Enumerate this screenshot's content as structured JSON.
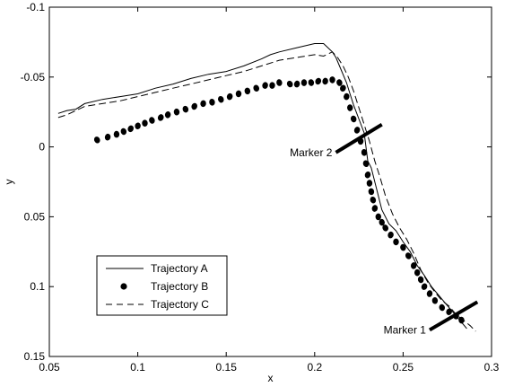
{
  "chart_data": {
    "type": "line",
    "xlabel": "x",
    "ylabel": "y",
    "xlim": [
      0.05,
      0.3
    ],
    "ylim": [
      -0.1,
      0.15
    ],
    "y_axis_reversed": true,
    "grid": false,
    "legend_placement": "bottom-left",
    "x_ticks": [
      0.05,
      0.1,
      0.15,
      0.2,
      0.25,
      0.3
    ],
    "x_tick_labels": [
      "0.05",
      "0.1",
      "0.15",
      "0.2",
      "0.25",
      "0.3"
    ],
    "y_ticks": [
      -0.1,
      -0.05,
      0,
      0.05,
      0.1,
      0.15
    ],
    "y_tick_labels": [
      "-0.1",
      "-0.05",
      "0",
      "0.05",
      "0.1",
      "0.15"
    ],
    "series": [
      {
        "name": "Trajectory A",
        "style": "solid",
        "color": "#000000",
        "x": [
          0.055,
          0.06,
          0.065,
          0.07,
          0.08,
          0.09,
          0.1,
          0.11,
          0.12,
          0.13,
          0.14,
          0.15,
          0.16,
          0.17,
          0.175,
          0.18,
          0.19,
          0.2,
          0.205,
          0.21,
          0.212,
          0.215,
          0.218,
          0.22,
          0.222,
          0.225,
          0.228,
          0.23,
          0.232,
          0.235,
          0.238,
          0.242,
          0.246,
          0.25,
          0.254,
          0.258,
          0.262,
          0.266,
          0.27,
          0.274,
          0.278,
          0.282,
          0.286
        ],
        "y": [
          -0.024,
          -0.026,
          -0.027,
          -0.031,
          -0.034,
          -0.036,
          -0.038,
          -0.042,
          -0.045,
          -0.049,
          -0.052,
          -0.054,
          -0.058,
          -0.063,
          -0.066,
          -0.068,
          -0.071,
          -0.074,
          -0.074,
          -0.068,
          -0.064,
          -0.055,
          -0.046,
          -0.038,
          -0.03,
          -0.02,
          -0.01,
          0.01,
          0.015,
          0.03,
          0.045,
          0.055,
          0.06,
          0.068,
          0.075,
          0.085,
          0.092,
          0.1,
          0.106,
          0.112,
          0.118,
          0.124,
          0.13
        ]
      },
      {
        "name": "Trajectory B",
        "style": "dots",
        "color": "#000000",
        "x": [
          0.077,
          0.083,
          0.088,
          0.092,
          0.096,
          0.1,
          0.104,
          0.108,
          0.113,
          0.117,
          0.122,
          0.127,
          0.132,
          0.137,
          0.142,
          0.147,
          0.152,
          0.157,
          0.162,
          0.167,
          0.172,
          0.176,
          0.18,
          0.186,
          0.19,
          0.194,
          0.198,
          0.202,
          0.206,
          0.21,
          0.214,
          0.216,
          0.218,
          0.22,
          0.222,
          0.224,
          0.226,
          0.228,
          0.229,
          0.23,
          0.231,
          0.232,
          0.233,
          0.234,
          0.236,
          0.238,
          0.24,
          0.243,
          0.246,
          0.25,
          0.253,
          0.256,
          0.258,
          0.26,
          0.262,
          0.265,
          0.268,
          0.272,
          0.276,
          0.28,
          0.283
        ],
        "y": [
          -0.005,
          -0.007,
          -0.009,
          -0.011,
          -0.013,
          -0.015,
          -0.017,
          -0.019,
          -0.021,
          -0.023,
          -0.025,
          -0.027,
          -0.029,
          -0.031,
          -0.032,
          -0.034,
          -0.036,
          -0.038,
          -0.04,
          -0.042,
          -0.044,
          -0.044,
          -0.046,
          -0.045,
          -0.045,
          -0.046,
          -0.046,
          -0.047,
          -0.047,
          -0.048,
          -0.046,
          -0.042,
          -0.036,
          -0.028,
          -0.02,
          -0.012,
          -0.004,
          0.004,
          0.012,
          0.02,
          0.026,
          0.032,
          0.038,
          0.044,
          0.05,
          0.054,
          0.058,
          0.063,
          0.068,
          0.072,
          0.078,
          0.085,
          0.09,
          0.095,
          0.1,
          0.105,
          0.11,
          0.115,
          0.118,
          0.121,
          0.124
        ]
      },
      {
        "name": "Trajectory C",
        "style": "dashed",
        "color": "#000000",
        "x": [
          0.055,
          0.06,
          0.065,
          0.07,
          0.08,
          0.09,
          0.1,
          0.11,
          0.12,
          0.13,
          0.14,
          0.15,
          0.16,
          0.17,
          0.18,
          0.19,
          0.2,
          0.205,
          0.21,
          0.213,
          0.216,
          0.219,
          0.222,
          0.225,
          0.228,
          0.231,
          0.234,
          0.237,
          0.24,
          0.244,
          0.248,
          0.252,
          0.256,
          0.26,
          0.264,
          0.268,
          0.272,
          0.276,
          0.28,
          0.284,
          0.288,
          0.291
        ],
        "y": [
          -0.021,
          -0.023,
          -0.026,
          -0.029,
          -0.031,
          -0.033,
          -0.036,
          -0.039,
          -0.042,
          -0.045,
          -0.048,
          -0.051,
          -0.054,
          -0.058,
          -0.062,
          -0.064,
          -0.066,
          -0.065,
          -0.068,
          -0.064,
          -0.058,
          -0.05,
          -0.04,
          -0.028,
          -0.016,
          -0.004,
          0.01,
          0.022,
          0.035,
          0.048,
          0.058,
          0.066,
          0.076,
          0.088,
          0.097,
          0.104,
          0.11,
          0.114,
          0.12,
          0.124,
          0.128,
          0.132
        ]
      }
    ],
    "annotations": [
      {
        "text": "Marker 2",
        "segment": {
          "x1": 0.212,
          "y1": 0.004,
          "x2": 0.238,
          "y2": -0.016
        }
      },
      {
        "text": "Marker 1",
        "segment": {
          "x1": 0.265,
          "y1": 0.131,
          "x2": 0.292,
          "y2": 0.111
        }
      }
    ]
  }
}
